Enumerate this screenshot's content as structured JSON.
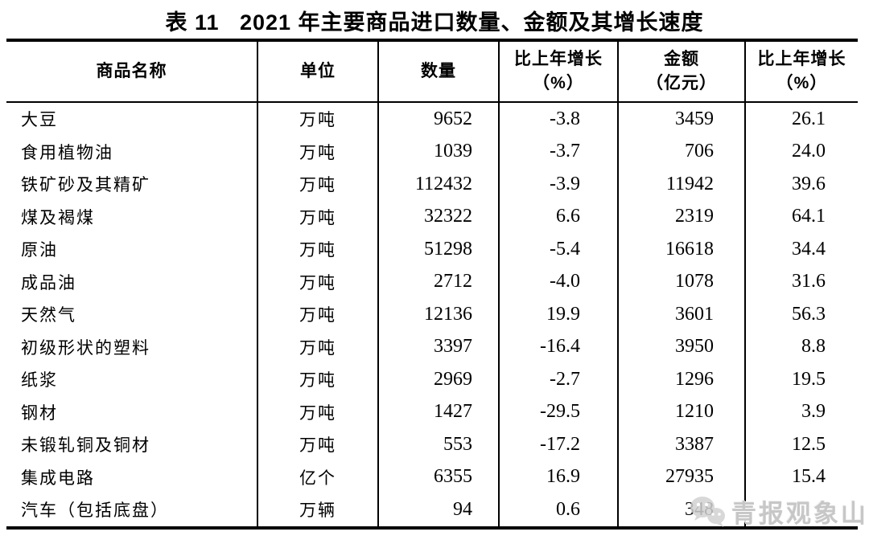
{
  "title": "表 11   2021 年主要商品进口数量、金额及其增长速度",
  "table": {
    "headers": [
      {
        "line1": "商品名称",
        "line2": ""
      },
      {
        "line1": "单位",
        "line2": ""
      },
      {
        "line1": "数量",
        "line2": ""
      },
      {
        "line1": "比上年增长",
        "line2": "（%）"
      },
      {
        "line1": "金额",
        "line2": "（亿元）"
      },
      {
        "line1": "比上年增长",
        "line2": "（%）"
      }
    ],
    "rows": [
      {
        "name": "大豆",
        "unit": "万吨",
        "quantity": "9652",
        "quantity_growth": "-3.8",
        "amount": "3459",
        "amount_growth": "26.1"
      },
      {
        "name": "食用植物油",
        "unit": "万吨",
        "quantity": "1039",
        "quantity_growth": "-3.7",
        "amount": "706",
        "amount_growth": "24.0"
      },
      {
        "name": "铁矿砂及其精矿",
        "unit": "万吨",
        "quantity": "112432",
        "quantity_growth": "-3.9",
        "amount": "11942",
        "amount_growth": "39.6"
      },
      {
        "name": "煤及褐煤",
        "unit": "万吨",
        "quantity": "32322",
        "quantity_growth": "6.6",
        "amount": "2319",
        "amount_growth": "64.1"
      },
      {
        "name": "原油",
        "unit": "万吨",
        "quantity": "51298",
        "quantity_growth": "-5.4",
        "amount": "16618",
        "amount_growth": "34.4"
      },
      {
        "name": "成品油",
        "unit": "万吨",
        "quantity": "2712",
        "quantity_growth": "-4.0",
        "amount": "1078",
        "amount_growth": "31.6"
      },
      {
        "name": "天然气",
        "unit": "万吨",
        "quantity": "12136",
        "quantity_growth": "19.9",
        "amount": "3601",
        "amount_growth": "56.3"
      },
      {
        "name": "初级形状的塑料",
        "unit": "万吨",
        "quantity": "3397",
        "quantity_growth": "-16.4",
        "amount": "3950",
        "amount_growth": "8.8"
      },
      {
        "name": "纸浆",
        "unit": "万吨",
        "quantity": "2969",
        "quantity_growth": "-2.7",
        "amount": "1296",
        "amount_growth": "19.5"
      },
      {
        "name": "钢材",
        "unit": "万吨",
        "quantity": "1427",
        "quantity_growth": "-29.5",
        "amount": "1210",
        "amount_growth": "3.9"
      },
      {
        "name": "未锻轧铜及铜材",
        "unit": "万吨",
        "quantity": "553",
        "quantity_growth": "-17.2",
        "amount": "3387",
        "amount_growth": "12.5"
      },
      {
        "name": "集成电路",
        "unit": "亿个",
        "quantity": "6355",
        "quantity_growth": "16.9",
        "amount": "27935",
        "amount_growth": "15.4"
      },
      {
        "name": "汽车（包括底盘）",
        "unit": "万辆",
        "quantity": "94",
        "quantity_growth": "0.6",
        "amount": "348",
        "amount_growth": ""
      }
    ]
  },
  "watermark": {
    "text": "青报观象山",
    "logo": "wechat-logo",
    "color": "#c7c7c7"
  }
}
